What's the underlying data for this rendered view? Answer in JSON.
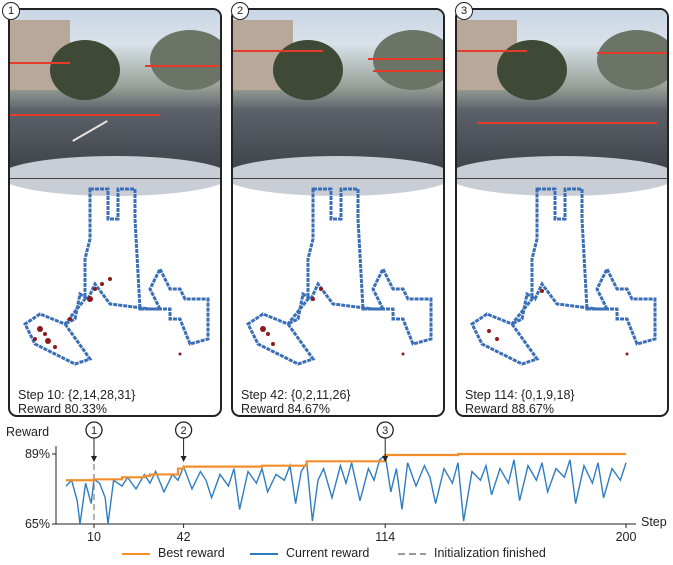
{
  "panels": [
    {
      "marker": "1",
      "step_line": "Step 10: {2,14,28,31}",
      "reward_line": "Reward 80.33%"
    },
    {
      "marker": "2",
      "step_line": "Step 42: {0,2,11,26}",
      "reward_line": "Reward 84.67%"
    },
    {
      "marker": "3",
      "step_line": "Step 114: {0,1,9,18}",
      "reward_line": "Reward 88.67%"
    }
  ],
  "chart_data": {
    "type": "line",
    "ylabel": "Reward",
    "xlabel": "Step",
    "xlim": [
      0,
      200
    ],
    "ylim": [
      65,
      89
    ],
    "y_ticks": [
      "65%",
      "89%"
    ],
    "x_ticks": [
      "10",
      "42",
      "114",
      "200"
    ],
    "markers": [
      {
        "label": "1",
        "step": 10
      },
      {
        "label": "2",
        "step": 42
      },
      {
        "label": "3",
        "step": 114
      }
    ],
    "init_finished_step": 10,
    "series": [
      {
        "name": "Best reward",
        "color": "#f28e2b",
        "points": [
          [
            0,
            80.0
          ],
          [
            10,
            80.33
          ],
          [
            20,
            81.0
          ],
          [
            28,
            81.5
          ],
          [
            30,
            82.0
          ],
          [
            40,
            84.0
          ],
          [
            42,
            84.67
          ],
          [
            70,
            85.0
          ],
          [
            84,
            85.0
          ],
          [
            86,
            86.5
          ],
          [
            114,
            88.67
          ],
          [
            140,
            89.0
          ],
          [
            200,
            89.0
          ]
        ]
      },
      {
        "name": "Current reward",
        "color": "#2f7dbf",
        "points": [
          [
            0,
            78
          ],
          [
            2,
            80
          ],
          [
            4,
            73
          ],
          [
            5,
            65
          ],
          [
            7,
            79
          ],
          [
            9,
            72
          ],
          [
            10,
            80.33
          ],
          [
            12,
            79
          ],
          [
            14,
            74
          ],
          [
            15,
            65
          ],
          [
            17,
            80
          ],
          [
            20,
            78
          ],
          [
            22,
            81
          ],
          [
            25,
            77
          ],
          [
            28,
            82
          ],
          [
            30,
            79
          ],
          [
            32,
            83
          ],
          [
            35,
            76
          ],
          [
            38,
            82
          ],
          [
            40,
            80
          ],
          [
            42,
            84.67
          ],
          [
            45,
            77
          ],
          [
            48,
            83
          ],
          [
            50,
            80
          ],
          [
            52,
            74
          ],
          [
            55,
            82
          ],
          [
            58,
            78
          ],
          [
            60,
            84
          ],
          [
            62,
            70
          ],
          [
            65,
            83
          ],
          [
            68,
            79
          ],
          [
            70,
            84
          ],
          [
            72,
            76
          ],
          [
            75,
            82
          ],
          [
            78,
            80
          ],
          [
            80,
            85
          ],
          [
            82,
            72
          ],
          [
            84,
            83
          ],
          [
            86,
            86
          ],
          [
            88,
            66
          ],
          [
            90,
            80
          ],
          [
            92,
            84
          ],
          [
            95,
            74
          ],
          [
            98,
            85
          ],
          [
            100,
            79
          ],
          [
            102,
            86
          ],
          [
            105,
            73
          ],
          [
            108,
            84
          ],
          [
            110,
            80
          ],
          [
            112,
            87
          ],
          [
            114,
            88.67
          ],
          [
            116,
            76
          ],
          [
            118,
            84
          ],
          [
            120,
            70
          ],
          [
            122,
            86
          ],
          [
            125,
            78
          ],
          [
            128,
            85
          ],
          [
            130,
            81
          ],
          [
            132,
            72
          ],
          [
            135,
            84
          ],
          [
            138,
            79
          ],
          [
            140,
            86
          ],
          [
            142,
            66
          ],
          [
            145,
            83
          ],
          [
            148,
            80
          ],
          [
            150,
            85
          ],
          [
            152,
            75
          ],
          [
            155,
            84
          ],
          [
            158,
            79
          ],
          [
            160,
            87
          ],
          [
            162,
            73
          ],
          [
            165,
            85
          ],
          [
            168,
            80
          ],
          [
            170,
            86
          ],
          [
            172,
            76
          ],
          [
            175,
            84
          ],
          [
            178,
            81
          ],
          [
            180,
            87
          ],
          [
            182,
            72
          ],
          [
            185,
            85
          ],
          [
            188,
            79
          ],
          [
            190,
            86
          ],
          [
            192,
            74
          ],
          [
            195,
            84
          ],
          [
            198,
            80
          ],
          [
            200,
            86
          ]
        ]
      }
    ],
    "legend": [
      "Best reward",
      "Current reward",
      "Initialization finished"
    ],
    "legend_colors": [
      "#f28e2b",
      "#2f7dbf",
      "#999999"
    ]
  }
}
